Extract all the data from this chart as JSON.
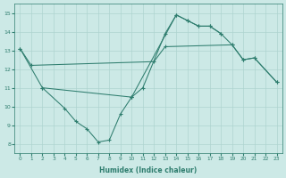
{
  "xlabel": "Humidex (Indice chaleur)",
  "xlim": [
    -0.5,
    23.5
  ],
  "ylim": [
    7.5,
    15.5
  ],
  "xticks": [
    0,
    1,
    2,
    3,
    4,
    5,
    6,
    7,
    8,
    9,
    10,
    11,
    12,
    13,
    14,
    15,
    16,
    17,
    18,
    19,
    20,
    21,
    22,
    23
  ],
  "yticks": [
    8,
    9,
    10,
    11,
    12,
    13,
    14,
    15
  ],
  "color": "#2e7d6e",
  "bg_color": "#cce9e6",
  "grid_color": "#aed4d0",
  "line1_x": [
    0,
    1,
    12,
    13,
    19,
    20,
    21,
    23
  ],
  "line1_y": [
    13.1,
    12.2,
    12.4,
    13.2,
    13.3,
    12.5,
    12.6,
    11.3
  ],
  "line2_x": [
    2,
    4,
    5,
    6,
    7,
    8,
    9,
    10
  ],
  "line2_y": [
    11.0,
    9.9,
    9.2,
    8.8,
    8.1,
    8.2,
    9.6,
    10.5
  ],
  "line3_x": [
    10,
    11,
    13,
    14,
    15,
    16,
    17,
    18
  ],
  "line3_y": [
    10.5,
    11.0,
    13.9,
    14.9,
    14.6,
    14.3,
    14.3,
    13.9
  ],
  "line4_x": [
    0,
    2,
    10,
    14,
    15,
    16,
    17,
    18,
    19,
    20,
    21,
    23
  ],
  "line4_y": [
    13.1,
    11.0,
    10.5,
    14.9,
    14.6,
    14.3,
    14.3,
    13.9,
    13.3,
    12.5,
    12.6,
    11.3
  ]
}
